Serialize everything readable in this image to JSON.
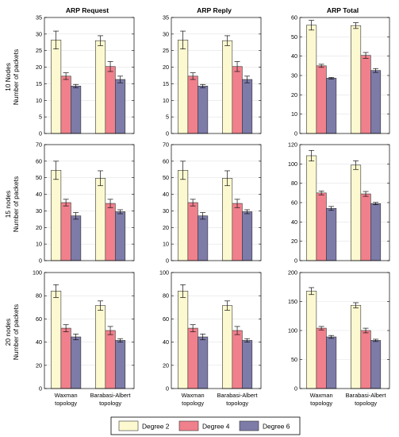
{
  "legend": {
    "placement": "bottom-center",
    "entries": [
      "Degree 2",
      "Degree 4",
      "Degree 6"
    ]
  },
  "colors": {
    "degree_2": "#fcf9d0",
    "degree_4": "#f0808c",
    "degree_6": "#7d7ba8",
    "grid": "#e3e3e3",
    "axis": "#000000"
  },
  "column_titles": [
    "ARP Request",
    "ARP Reply",
    "ARP Total"
  ],
  "row_labels": [
    [
      "10 Nodes",
      "Number of packets"
    ],
    [
      "15 nodes",
      "Number of packets"
    ],
    [
      "20 nodes",
      "Number of packets"
    ]
  ],
  "x_category_lines": [
    [
      "Waxman",
      "topology"
    ],
    [
      "Barabasi-Albert",
      "topology"
    ]
  ],
  "chart_data": [
    {
      "type": "bar",
      "title": "ARP Request",
      "ylabel": "10 Nodes Number of packets",
      "categories": [
        "Waxman topology",
        "Barabasi-Albert topology"
      ],
      "ylim": [
        0,
        35
      ],
      "yticks": [
        0,
        5,
        10,
        15,
        20,
        25,
        30,
        35
      ],
      "grid": true,
      "series": [
        {
          "name": "Degree 2",
          "values": [
            28.2,
            28.0
          ],
          "errors": [
            2.7,
            1.5
          ]
        },
        {
          "name": "Degree 4",
          "values": [
            17.3,
            20.2
          ],
          "errors": [
            1.0,
            1.5
          ]
        },
        {
          "name": "Degree 6",
          "values": [
            14.3,
            16.3
          ],
          "errors": [
            0.5,
            1.0
          ]
        }
      ]
    },
    {
      "type": "bar",
      "title": "ARP Reply",
      "ylabel": "",
      "categories": [
        "Waxman topology",
        "Barabasi-Albert topology"
      ],
      "ylim": [
        0,
        35
      ],
      "yticks": [
        0,
        5,
        10,
        15,
        20,
        25,
        30,
        35
      ],
      "grid": true,
      "series": [
        {
          "name": "Degree 2",
          "values": [
            28.2,
            28.0
          ],
          "errors": [
            2.7,
            1.5
          ]
        },
        {
          "name": "Degree 4",
          "values": [
            17.3,
            20.2
          ],
          "errors": [
            1.0,
            1.5
          ]
        },
        {
          "name": "Degree 6",
          "values": [
            14.3,
            16.3
          ],
          "errors": [
            0.5,
            1.0
          ]
        }
      ]
    },
    {
      "type": "bar",
      "title": "ARP Total",
      "ylabel": "",
      "categories": [
        "Waxman topology",
        "Barabasi-Albert topology"
      ],
      "ylim": [
        0,
        60
      ],
      "yticks": [
        0,
        10,
        20,
        30,
        40,
        50,
        60
      ],
      "grid": true,
      "series": [
        {
          "name": "Degree 2",
          "values": [
            56.0,
            55.8
          ],
          "errors": [
            2.5,
            1.5
          ]
        },
        {
          "name": "Degree 4",
          "values": [
            35.0,
            40.4
          ],
          "errors": [
            0.8,
            1.5
          ]
        },
        {
          "name": "Degree 6",
          "values": [
            28.6,
            32.6
          ],
          "errors": [
            0.4,
            1.0
          ]
        }
      ]
    },
    {
      "type": "bar",
      "title": "",
      "ylabel": "15 nodes Number of packets",
      "categories": [
        "Waxman topology",
        "Barabasi-Albert topology"
      ],
      "ylim": [
        0,
        70
      ],
      "yticks": [
        0,
        10,
        20,
        30,
        40,
        50,
        60,
        70
      ],
      "grid": true,
      "series": [
        {
          "name": "Degree 2",
          "values": [
            54.5,
            49.7
          ],
          "errors": [
            5.5,
            4.5
          ]
        },
        {
          "name": "Degree 4",
          "values": [
            35.0,
            34.5
          ],
          "errors": [
            2.0,
            2.5
          ]
        },
        {
          "name": "Degree 6",
          "values": [
            27.0,
            29.5
          ],
          "errors": [
            2.0,
            1.2
          ]
        }
      ]
    },
    {
      "type": "bar",
      "title": "",
      "ylabel": "",
      "categories": [
        "Waxman topology",
        "Barabasi-Albert topology"
      ],
      "ylim": [
        0,
        70
      ],
      "yticks": [
        0,
        10,
        20,
        30,
        40,
        50,
        60,
        70
      ],
      "grid": true,
      "series": [
        {
          "name": "Degree 2",
          "values": [
            54.5,
            49.7
          ],
          "errors": [
            5.5,
            4.5
          ]
        },
        {
          "name": "Degree 4",
          "values": [
            35.0,
            34.5
          ],
          "errors": [
            2.0,
            2.5
          ]
        },
        {
          "name": "Degree 6",
          "values": [
            27.0,
            29.5
          ],
          "errors": [
            2.0,
            1.2
          ]
        }
      ]
    },
    {
      "type": "bar",
      "title": "",
      "ylabel": "",
      "categories": [
        "Waxman topology",
        "Barabasi-Albert topology"
      ],
      "ylim": [
        0,
        120
      ],
      "yticks": [
        0,
        20,
        40,
        60,
        80,
        100,
        120
      ],
      "grid": true,
      "series": [
        {
          "name": "Degree 2",
          "values": [
            108.5,
            98.8
          ],
          "errors": [
            5.5,
            4.5
          ]
        },
        {
          "name": "Degree 4",
          "values": [
            70.0,
            69.0
          ],
          "errors": [
            2.0,
            2.5
          ]
        },
        {
          "name": "Degree 6",
          "values": [
            54.0,
            59.0
          ],
          "errors": [
            2.0,
            1.2
          ]
        }
      ]
    },
    {
      "type": "bar",
      "title": "",
      "ylabel": "20 nodes Number of packets",
      "categories": [
        "Waxman topology",
        "Barabasi-Albert topology"
      ],
      "ylim": [
        0,
        100
      ],
      "yticks": [
        0,
        20,
        40,
        60,
        80,
        100
      ],
      "grid": true,
      "series": [
        {
          "name": "Degree 2",
          "values": [
            84.0,
            71.5
          ],
          "errors": [
            5.5,
            4.0
          ]
        },
        {
          "name": "Degree 4",
          "values": [
            52.0,
            50.0
          ],
          "errors": [
            3.0,
            3.5
          ]
        },
        {
          "name": "Degree 6",
          "values": [
            44.5,
            41.5
          ],
          "errors": [
            2.5,
            1.5
          ]
        }
      ]
    },
    {
      "type": "bar",
      "title": "",
      "ylabel": "",
      "categories": [
        "Waxman topology",
        "Barabasi-Albert topology"
      ],
      "ylim": [
        0,
        100
      ],
      "yticks": [
        0,
        20,
        40,
        60,
        80,
        100
      ],
      "grid": true,
      "series": [
        {
          "name": "Degree 2",
          "values": [
            84.0,
            71.5
          ],
          "errors": [
            5.5,
            4.0
          ]
        },
        {
          "name": "Degree 4",
          "values": [
            52.0,
            50.0
          ],
          "errors": [
            3.0,
            3.5
          ]
        },
        {
          "name": "Degree 6",
          "values": [
            44.5,
            41.5
          ],
          "errors": [
            2.5,
            1.5
          ]
        }
      ]
    },
    {
      "type": "bar",
      "title": "",
      "ylabel": "",
      "categories": [
        "Waxman topology",
        "Barabasi-Albert topology"
      ],
      "ylim": [
        0,
        200
      ],
      "yticks": [
        0,
        50,
        100,
        150,
        200
      ],
      "grid": true,
      "series": [
        {
          "name": "Degree 2",
          "values": [
            168.0,
            143.5
          ],
          "errors": [
            6.0,
            4.5
          ]
        },
        {
          "name": "Degree 4",
          "values": [
            104.0,
            100.0
          ],
          "errors": [
            3.0,
            4.0
          ]
        },
        {
          "name": "Degree 6",
          "values": [
            89.0,
            83.0
          ],
          "errors": [
            2.5,
            2.0
          ]
        }
      ]
    }
  ]
}
